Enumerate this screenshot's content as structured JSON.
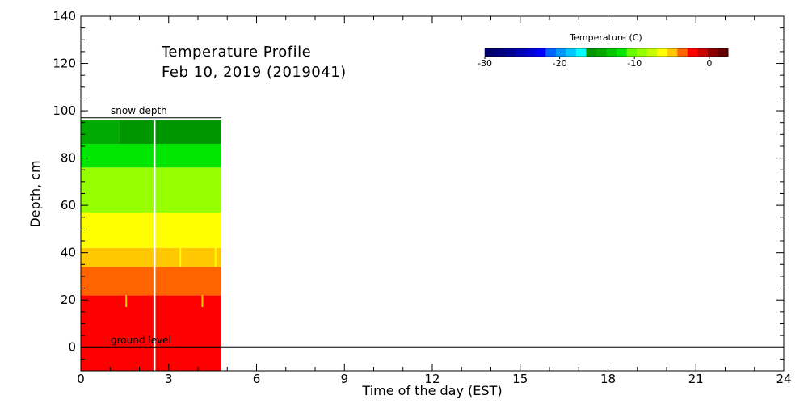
{
  "chart_data": {
    "type": "heatmap",
    "title": "Temperature Profile",
    "subtitle": "Feb 10, 2019 (2019041)",
    "xlabel": "Time of the day (EST)",
    "ylabel": "Depth, cm",
    "xlim": [
      0,
      24
    ],
    "ylim": [
      -10,
      140
    ],
    "xticks": [
      0,
      3,
      6,
      9,
      12,
      15,
      18,
      21,
      24
    ],
    "yticks": [
      0,
      20,
      40,
      60,
      80,
      100,
      120,
      140
    ],
    "x_tick_labels": [
      "0",
      "3",
      "6",
      "9",
      "12",
      "15",
      "18",
      "21",
      "24"
    ],
    "y_tick_labels": [
      "0",
      "20",
      "40",
      "60",
      "80",
      "100",
      "120",
      "140"
    ],
    "annotations": {
      "snow_depth": {
        "text": "snow depth",
        "depth_cm": 96
      },
      "ground_level": {
        "text": "ground level",
        "depth_cm": 0
      }
    },
    "colorbar": {
      "title": "Temperature (C)",
      "range": [
        -30,
        2.5
      ],
      "tick_values": [
        -30,
        -20,
        -10,
        0
      ],
      "tick_labels": [
        "-30",
        "-20",
        "-10",
        "0"
      ],
      "colors": [
        "#00006e",
        "#00007f",
        "#000096",
        "#0000b4",
        "#0000d2",
        "#0000ff",
        "#0064ff",
        "#0096ff",
        "#00c8ff",
        "#00ffff",
        "#009600",
        "#00aa00",
        "#00c800",
        "#00e600",
        "#64ff00",
        "#96ff00",
        "#c8ff00",
        "#ffff00",
        "#ffc800",
        "#ff6400",
        "#ff0000",
        "#c80000",
        "#8c0000",
        "#640000"
      ]
    },
    "cells": [
      {
        "t0": 0,
        "t1": 4.8,
        "d0": -10,
        "d1": 22,
        "color": "#ff0000"
      },
      {
        "t0": 0,
        "t1": 4.8,
        "d0": 22,
        "d1": 34,
        "color": "#ff6400"
      },
      {
        "t0": 0,
        "t1": 4.8,
        "d0": 34,
        "d1": 42,
        "color": "#ffc800"
      },
      {
        "t0": 0,
        "t1": 4.8,
        "d0": 42,
        "d1": 57,
        "color": "#ffff00"
      },
      {
        "t0": 0,
        "t1": 4.8,
        "d0": 57,
        "d1": 76,
        "color": "#96ff00"
      },
      {
        "t0": 0,
        "t1": 4.8,
        "d0": 76,
        "d1": 86,
        "color": "#00e600"
      },
      {
        "t0": 0,
        "t1": 1.3,
        "d0": 86,
        "d1": 96,
        "color": "#00aa00"
      },
      {
        "t0": 1.3,
        "t1": 4.8,
        "d0": 86,
        "d1": 96,
        "color": "#009600"
      }
    ],
    "gap": {
      "t0": 2.48,
      "t1": 2.55
    },
    "streaks": [
      {
        "t": 3.4,
        "d0": 34,
        "d1": 42,
        "color": "#ffff00"
      },
      {
        "t": 4.6,
        "d0": 34,
        "d1": 42,
        "color": "#ffff00"
      },
      {
        "t": 1.55,
        "d0": 17,
        "d1": 22,
        "color": "#ffc800"
      },
      {
        "t": 4.15,
        "d0": 17,
        "d1": 22,
        "color": "#ffc800"
      }
    ]
  }
}
